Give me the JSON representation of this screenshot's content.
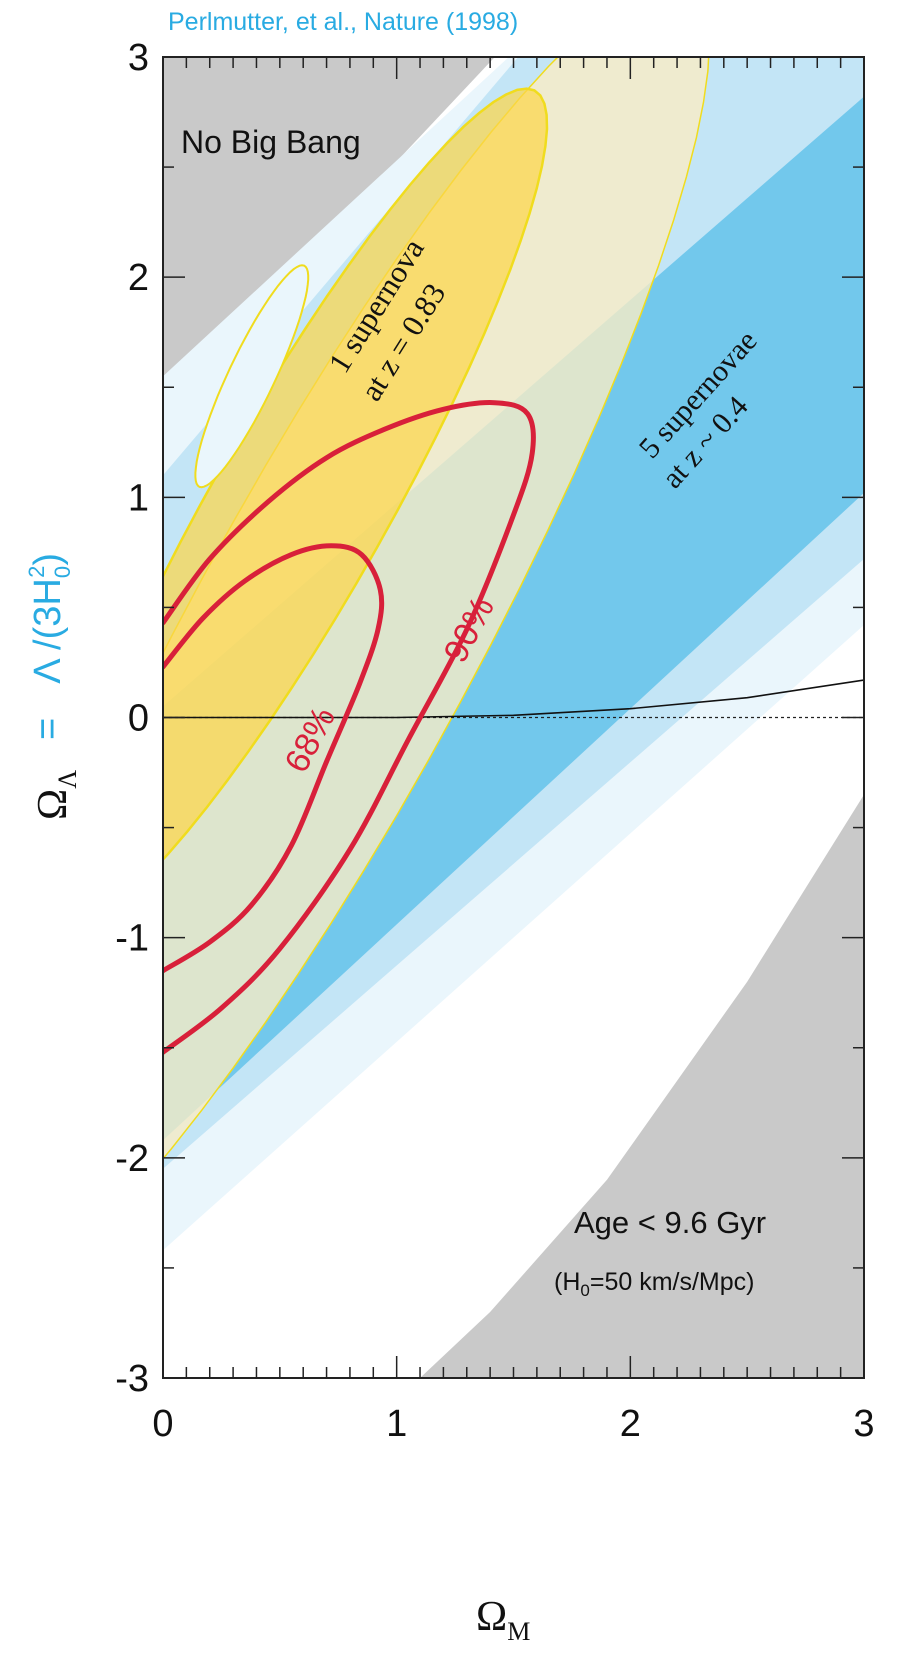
{
  "citation": "Perlmutter, et al., Nature (1998)",
  "chart_data": {
    "type": "area",
    "title": "",
    "xlabel": "Ω_M",
    "xlabel_main": "Ω",
    "xlabel_sub": "M",
    "ylabel_lhs": "Ω",
    "ylabel_lhs_sub": "Λ",
    "ylabel_rhs_eq": "=",
    "ylabel_rhs_pre": "Λ /(3H",
    "ylabel_rhs_sub": "0",
    "ylabel_rhs_sup": "2",
    "ylabel_rhs_post": ")",
    "xlim": [
      0,
      3
    ],
    "ylim": [
      -3,
      3
    ],
    "x_ticks": [
      0,
      1,
      2,
      3
    ],
    "x_tick_labels": [
      "0",
      "1",
      "2",
      "3"
    ],
    "y_ticks": [
      3,
      2,
      1,
      0,
      -1,
      -2,
      -3
    ],
    "y_tick_labels": [
      "3",
      "2",
      "1",
      "0",
      "-1",
      "-2",
      "-3"
    ],
    "regions": [
      {
        "name": "No Big Bang",
        "color": "#c9c9c9",
        "points": [
          [
            0,
            3
          ],
          [
            1.42,
            3
          ],
          [
            0.18,
            1.6
          ],
          [
            0,
            1.1
          ]
        ]
      },
      {
        "name": "Age < 9.6 Gyr",
        "color": "#c9c9c9",
        "points": [
          [
            1.1,
            -3
          ],
          [
            3,
            -3
          ],
          [
            3,
            -0.35
          ],
          [
            2.5,
            -1.2
          ],
          [
            1.9,
            -2.1
          ],
          [
            1.4,
            -2.7
          ]
        ]
      }
    ],
    "band_colors": [
      "#eaf6fc",
      "#c3e5f6",
      "#72c8ec"
    ],
    "bands": [
      {
        "level": "outer",
        "color": "#eaf6fc",
        "points": [
          [
            0,
            -2.42
          ],
          [
            3,
            0.42
          ],
          [
            3,
            3
          ],
          [
            1.48,
            3
          ],
          [
            0,
            1.55
          ]
        ]
      },
      {
        "level": "middle",
        "color": "#c3e5f6",
        "points": [
          [
            0,
            -2.05
          ],
          [
            3,
            0.72
          ],
          [
            3,
            3
          ],
          [
            1.52,
            3
          ],
          [
            0,
            1.1
          ]
        ]
      },
      {
        "level": "inner",
        "color": "#72c8ec",
        "points": [
          [
            0,
            -1.92
          ],
          [
            3,
            1.02
          ],
          [
            3,
            2.82
          ],
          [
            0,
            0.05
          ]
        ]
      }
    ],
    "band_label_line1": "5 supernovae",
    "band_label_line2": "at z ~ 0.4",
    "ellipse_label_line1": "1 supernova",
    "ellipse_label_line2": "at z = 0.83",
    "ellipse_colors": {
      "outer_fill": "#fbedc4",
      "inner_fill": "#fcd64a",
      "inner_stroke": "#f0dc1e"
    },
    "contours": [
      {
        "label": "68%",
        "color": "#d8203a",
        "points": [
          [
            0,
            0.23
          ],
          [
            0.17,
            0.45
          ],
          [
            0.35,
            0.62
          ],
          [
            0.55,
            0.74
          ],
          [
            0.72,
            0.78
          ],
          [
            0.85,
            0.74
          ],
          [
            0.93,
            0.58
          ],
          [
            0.92,
            0.4
          ],
          [
            0.84,
            0.15
          ],
          [
            0.7,
            -0.2
          ],
          [
            0.55,
            -0.58
          ],
          [
            0.38,
            -0.85
          ],
          [
            0.2,
            -1.02
          ],
          [
            0,
            -1.15
          ]
        ]
      },
      {
        "label": "90%",
        "color": "#d8203a",
        "points": [
          [
            0,
            0.43
          ],
          [
            0.2,
            0.72
          ],
          [
            0.45,
            0.98
          ],
          [
            0.7,
            1.18
          ],
          [
            0.95,
            1.31
          ],
          [
            1.2,
            1.4
          ],
          [
            1.42,
            1.43
          ],
          [
            1.56,
            1.38
          ],
          [
            1.58,
            1.2
          ],
          [
            1.5,
            0.92
          ],
          [
            1.3,
            0.4
          ],
          [
            1.05,
            -0.1
          ],
          [
            0.8,
            -0.6
          ],
          [
            0.5,
            -1.05
          ],
          [
            0.25,
            -1.32
          ],
          [
            0,
            -1.52
          ]
        ]
      }
    ],
    "zero_age_curve": [
      [
        0,
        0
      ],
      [
        1.0,
        0
      ],
      [
        1.5,
        0.01
      ],
      [
        2.0,
        0.04
      ],
      [
        2.5,
        0.09
      ],
      [
        3.0,
        0.17
      ]
    ],
    "annotations": {
      "no_big_bang": "No Big Bang",
      "age": "Age < 9.6 Gyr",
      "h0_pre": "(H",
      "h0_sub": "0",
      "h0_post": "=50 km/s/Mpc)"
    }
  }
}
